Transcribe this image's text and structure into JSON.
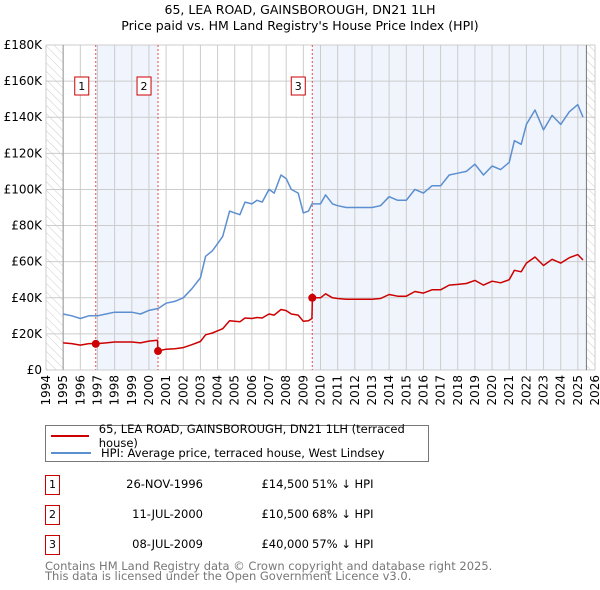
{
  "chart_data": {
    "type": "line",
    "title": "65, LEA ROAD, GAINSBOROUGH, DN21 1LH",
    "subtitle": "Price paid vs. HM Land Registry's House Price Index (HPI)",
    "xlabel": "",
    "ylabel": "",
    "xlim": [
      1994,
      2026
    ],
    "ylim": [
      0,
      180000
    ],
    "y_ticks": [
      "£0",
      "£20K",
      "£40K",
      "£60K",
      "£80K",
      "£100K",
      "£120K",
      "£140K",
      "£160K",
      "£180K"
    ],
    "x_ticks": [
      "1994",
      "1995",
      "1996",
      "1997",
      "1998",
      "1999",
      "2000",
      "2001",
      "2002",
      "2003",
      "2004",
      "2005",
      "2006",
      "2007",
      "2008",
      "2009",
      "2010",
      "2011",
      "2012",
      "2013",
      "2014",
      "2015",
      "2016",
      "2017",
      "2018",
      "2019",
      "2020",
      "2021",
      "2022",
      "2023",
      "2024",
      "2025",
      "2026"
    ],
    "grid": true,
    "x": [
      1995,
      1995.5,
      1996,
      1996.5,
      1997,
      1997.5,
      1998,
      1998.5,
      1999,
      1999.5,
      2000,
      2000.5,
      2000.53,
      2001,
      2001.5,
      2002,
      2002.5,
      2003,
      2003.3,
      2003.7,
      2004,
      2004.3,
      2004.7,
      2005,
      2005.3,
      2005.6,
      2006,
      2006.3,
      2006.6,
      2007,
      2007.3,
      2007.7,
      2008,
      2008.3,
      2008.7,
      2009,
      2009.3,
      2009.5,
      2009.53,
      2010,
      2010.3,
      2010.7,
      2011,
      2011.5,
      2012,
      2012.5,
      2013,
      2013.5,
      2014,
      2014.5,
      2015,
      2015.5,
      2016,
      2016.5,
      2017,
      2017.5,
      2018,
      2018.5,
      2019,
      2019.5,
      2020,
      2020.5,
      2021,
      2021.3,
      2021.7,
      2022,
      2022.5,
      2023,
      2023.5,
      2024,
      2024.5,
      2025,
      2025.3
    ],
    "series": [
      {
        "name": "65, LEA ROAD, GAINSBOROUGH, DN21 1LH (terraced house)",
        "color": "#cc0000",
        "values": [
          15000,
          14600,
          13800,
          14600,
          14600,
          15000,
          15500,
          15500,
          15500,
          15000,
          16000,
          16500,
          10500,
          11500,
          11800,
          12400,
          14000,
          15800,
          19500,
          20500,
          21700,
          22900,
          27300,
          27000,
          26700,
          28800,
          28500,
          29100,
          28800,
          31000,
          30400,
          33500,
          32900,
          31000,
          30400,
          27000,
          27300,
          28500,
          40000,
          40000,
          42200,
          40000,
          39600,
          39200,
          39200,
          39200,
          39200,
          39600,
          41800,
          40900,
          40900,
          43500,
          42600,
          44400,
          44400,
          47000,
          47400,
          47900,
          49600,
          47000,
          49200,
          48300,
          50000,
          55200,
          54400,
          59200,
          62600,
          57900,
          61300,
          59200,
          62200,
          63900,
          60900
        ]
      },
      {
        "name": "HPI: Average price, terraced house, West Lindsey",
        "color": "#5b8fd0",
        "values": [
          31000,
          30000,
          28500,
          30000,
          30000,
          31000,
          32000,
          32000,
          32000,
          31000,
          33000,
          34000,
          34000,
          37000,
          38000,
          40000,
          45000,
          51000,
          63000,
          66000,
          70000,
          74000,
          88000,
          87000,
          86000,
          93000,
          92000,
          94000,
          93000,
          100000,
          98000,
          108000,
          106000,
          100000,
          98000,
          87000,
          88000,
          92000,
          92000,
          92000,
          97000,
          92000,
          91000,
          90000,
          90000,
          90000,
          90000,
          91000,
          96000,
          94000,
          94000,
          100000,
          98000,
          102000,
          102000,
          108000,
          109000,
          110000,
          114000,
          108000,
          113000,
          111000,
          115000,
          127000,
          125000,
          136000,
          144000,
          133000,
          141000,
          136000,
          143000,
          147000,
          140000
        ]
      }
    ],
    "sales": [
      {
        "label": "1",
        "year": 1996.9,
        "value": 14500
      },
      {
        "label": "2",
        "year": 2000.53,
        "value": 10500
      },
      {
        "label": "3",
        "year": 2009.52,
        "value": 40000
      }
    ],
    "shaded_ranges": [
      [
        1996.9,
        2000.53
      ],
      [
        2009.52,
        2025.5
      ]
    ],
    "hatched_ranges": [
      [
        1994,
        1995
      ],
      [
        2025.5,
        2026
      ]
    ],
    "legend_position": "bottom"
  },
  "legend": [
    {
      "label": "65, LEA ROAD, GAINSBOROUGH, DN21 1LH (terraced house)",
      "color": "#cc0000"
    },
    {
      "label": "HPI: Average price, terraced house, West Lindsey",
      "color": "#5b8fd0"
    }
  ],
  "transactions": [
    {
      "num": "1",
      "date": "26-NOV-1996",
      "price": "£14,500",
      "hpi": "51% ↓ HPI"
    },
    {
      "num": "2",
      "date": "11-JUL-2000",
      "price": "£10,500",
      "hpi": "68% ↓ HPI"
    },
    {
      "num": "3",
      "date": "08-JUL-2009",
      "price": "£40,000",
      "hpi": "57% ↓ HPI"
    }
  ],
  "footer": {
    "line1": "Contains HM Land Registry data © Crown copyright and database right 2025.",
    "line2": "This data is licensed under the Open Government Licence v3.0."
  }
}
